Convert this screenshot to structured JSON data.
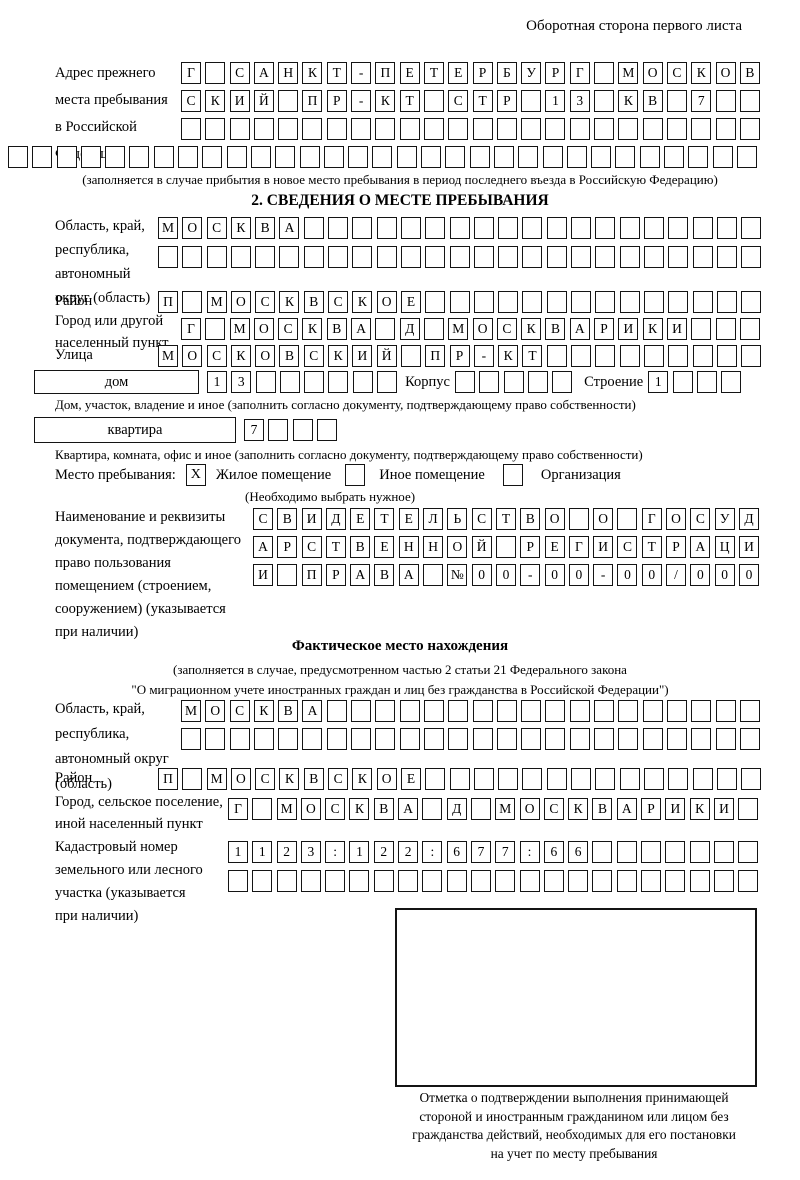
{
  "page": {
    "header_note": "Оборотная сторона первого листа"
  },
  "prev_address": {
    "label_lines": [
      "Адрес прежнего",
      "места пребывания",
      "в Российской",
      "Федерации"
    ],
    "rows": [
      {
        "text": "Г САНКТ-ПЕТЕРБУРГ МОСКОВ",
        "len": 24
      },
      {
        "text": "СКИЙ ПР-КТ СТР 13 КВ 7",
        "len": 24
      },
      {
        "text": "",
        "len": 24
      },
      {
        "text": "",
        "len": 31
      }
    ],
    "note": "(заполняется в случае прибытия в новое место пребывания в период последнего въезда в Российскую Федерацию)"
  },
  "section2": {
    "title": "2. СВЕДЕНИЯ О МЕСТЕ ПРЕБЫВАНИЯ",
    "region": {
      "label_lines": [
        "Область, край,",
        "республика,",
        "автономный",
        "округ (область)"
      ],
      "rows": [
        {
          "text": "МОСКВА",
          "len": 25
        },
        {
          "text": "",
          "len": 25
        }
      ]
    },
    "district": {
      "label": "Район",
      "row": {
        "text": "П МОСКВСКОЕ",
        "len": 25
      }
    },
    "city": {
      "label_lines": [
        "Город или другой",
        "населенный пункт"
      ],
      "row": {
        "text": "Г МОСКВА Д МОСКВАРИКИ",
        "len": 24
      }
    },
    "street": {
      "label": "Улица",
      "row": {
        "text": "МОСКОВСКИЙ ПР-КТ",
        "len": 25
      }
    },
    "house_line": {
      "house_box_label": "дом",
      "house_cells": {
        "text": "13",
        "len": 8
      },
      "korpus_label": "Корпус",
      "korpus_cells": {
        "text": "",
        "len": 5
      },
      "stroenie_label": "Строение",
      "stroenie_cells": {
        "text": "1",
        "len": 4
      }
    },
    "house_note": "Дом, участок, владение и иное (заполнить согласно документу, подтверждающему право собственности)",
    "apartment_line": {
      "box_label": "квартира",
      "cells": {
        "text": "7",
        "len": 4
      }
    },
    "apartment_note": "Квартира, комната, офис и иное (заполнить согласно документу, подтверждающему право собственности)",
    "stay": {
      "label": "Место пребывания:",
      "options": [
        {
          "label": "Жилое помещение",
          "mark": "X"
        },
        {
          "label": "Иное помещение",
          "mark": ""
        },
        {
          "label": "Организация",
          "mark": ""
        }
      ],
      "note": "(Необходимо выбрать нужное)"
    },
    "document": {
      "label_lines": [
        "Наименование и реквизиты",
        "документа, подтверждающего",
        "право пользования",
        "помещением (строением,",
        "сооружением) (указывается",
        "при наличии)"
      ],
      "rows": [
        {
          "text": "СВИДЕТЕЛЬСТВО О ГОСУД",
          "len": 21
        },
        {
          "text": "АРСТВЕННОЙ РЕГИСТРАЦИ",
          "len": 21
        },
        {
          "text": "И ПРАВА №00-00-00/000",
          "len": 21
        }
      ]
    }
  },
  "actual_location": {
    "title": "Фактическое место нахождения",
    "note_lines": [
      "(заполняется в случае, предусмотренном частью 2 статьи 21 Федерального закона",
      "\"О миграционном учете иностранных граждан и лиц без гражданства в Российской Федерации\")"
    ],
    "region": {
      "label_lines": [
        "Область, край,",
        "республика,",
        "автономный округ",
        "(область)"
      ],
      "rows": [
        {
          "text": "МОСКВА",
          "len": 24
        },
        {
          "text": "",
          "len": 24
        }
      ]
    },
    "district": {
      "label": "Район",
      "row": {
        "text": "П МОСКВСКОЕ",
        "len": 25
      }
    },
    "city": {
      "label_lines": [
        "Город, сельское поселение,",
        "иной населенный пункт"
      ],
      "row": {
        "text": "Г МОСКВА Д МОСКВАРИКИ",
        "len": 22
      }
    },
    "cadastral": {
      "label_lines": [
        "Кадастровый номер",
        "земельного или лесного",
        "участка (указывается",
        "при наличии)"
      ],
      "rows": [
        {
          "text": "1123:122:677:66",
          "len": 22
        },
        {
          "text": "",
          "len": 22
        }
      ]
    }
  },
  "confirmation": {
    "caption_lines": [
      "Отметка о подтверждении выполнения принимающей",
      "стороной и иностранным гражданином или лицом без",
      "гражданства действий, необходимых для его постановки",
      "на учет по месту пребывания"
    ]
  }
}
